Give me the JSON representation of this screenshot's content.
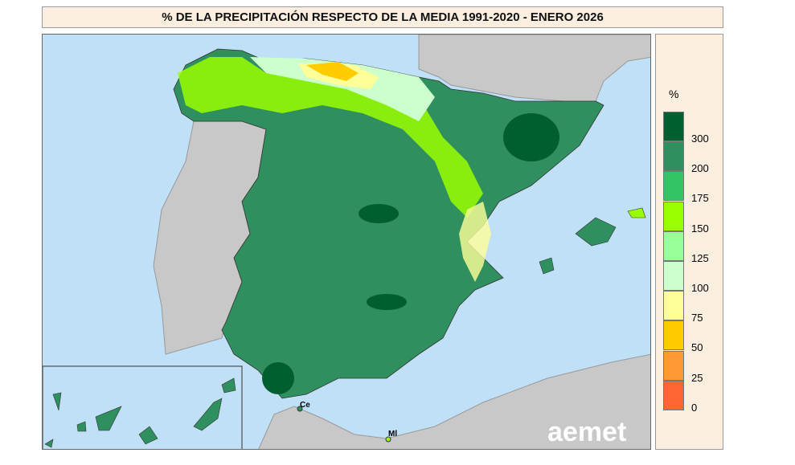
{
  "title": "% DE LA PRECIPITACIÓN RESPECTO DE LA MEDIA 1991-2020 - ENERO 2026",
  "legend": {
    "unit": "%",
    "classes": [
      {
        "label": "300",
        "color": "#005f2f"
      },
      {
        "label": "200",
        "color": "#2f8f5e"
      },
      {
        "label": "175",
        "color": "#33c466"
      },
      {
        "label": "150",
        "color": "#99ff00"
      },
      {
        "label": "125",
        "color": "#99ff99"
      },
      {
        "label": "100",
        "color": "#ccffcc"
      },
      {
        "label": "75",
        "color": "#ffff99"
      },
      {
        "label": "50",
        "color": "#ffcc00"
      },
      {
        "label": "25",
        "color": "#ff9933"
      },
      {
        "label": "0",
        "color": "#ff6633"
      }
    ]
  },
  "map": {
    "labels": {
      "ceuta": "Ce",
      "melilla": "Ml"
    },
    "logo": "aemet",
    "sea_color": "#bfe0f7",
    "land_color": "#c8c8c8"
  }
}
